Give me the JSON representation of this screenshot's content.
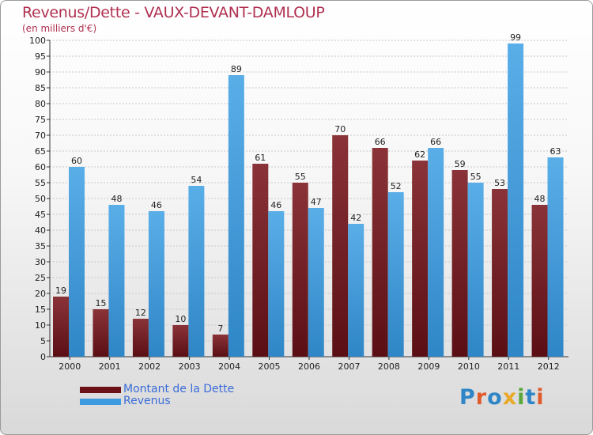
{
  "title": "Revenus/Dette - VAUX-DEVANT-DAMLOUP",
  "subtitle": "(en milliers d'€)",
  "logo": {
    "text": "Proxiti",
    "letters": [
      {
        "ch": "P",
        "color": "#2f86c6"
      },
      {
        "ch": "r",
        "color": "#e05a2a"
      },
      {
        "ch": "o",
        "color": "#2f86c6"
      },
      {
        "ch": "x",
        "color": "#e9a826"
      },
      {
        "ch": "i",
        "color": "#5aa83a"
      },
      {
        "ch": "t",
        "color": "#2f86c6"
      },
      {
        "ch": "i",
        "color": "#e05a2a"
      }
    ]
  },
  "colors": {
    "dette": "#7a1f24",
    "revenus": "#3f9be0",
    "grid": "#c8c8c8",
    "title": "#b03050",
    "legend_text": "#3a6cd8"
  },
  "chart_data": {
    "type": "bar",
    "categories": [
      "2000",
      "2001",
      "2002",
      "2003",
      "2004",
      "2005",
      "2006",
      "2007",
      "2008",
      "2009",
      "2010",
      "2011",
      "2012"
    ],
    "series": [
      {
        "name": "Montant de la Dette",
        "values": [
          19,
          15,
          12,
          10,
          7,
          61,
          55,
          70,
          66,
          62,
          59,
          53,
          48
        ]
      },
      {
        "name": "Revenus",
        "values": [
          60,
          48,
          46,
          54,
          89,
          46,
          47,
          42,
          52,
          66,
          55,
          99,
          63
        ]
      }
    ],
    "ylim": [
      0,
      100
    ],
    "ytick_step": 5,
    "grid": true,
    "legend": "bottom-left"
  }
}
